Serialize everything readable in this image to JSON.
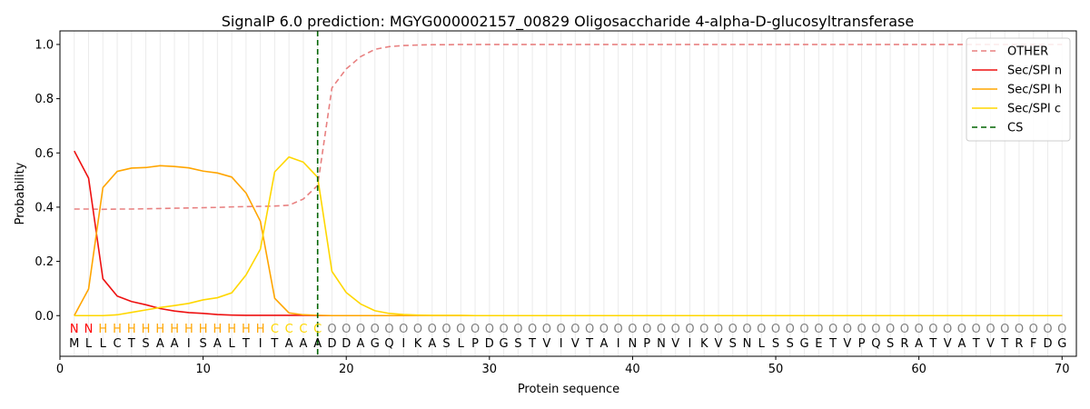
{
  "chart_data": {
    "type": "line",
    "title": "SignalP 6.0 prediction: MGYG000002157_00829 Oligosaccharide 4-alpha-D-glucosyltransferase",
    "xlabel": "Protein sequence",
    "ylabel": "Probability",
    "xlim": [
      0,
      71
    ],
    "ylim": [
      -0.15,
      1.05
    ],
    "xticks": [
      0,
      10,
      20,
      30,
      40,
      50,
      60,
      70
    ],
    "yticks": [
      0.0,
      0.2,
      0.4,
      0.6,
      0.8,
      1.0
    ],
    "xtick_labels": [
      "0",
      "10",
      "20",
      "30",
      "40",
      "50",
      "60",
      "70"
    ],
    "ytick_labels": [
      "0.0",
      "0.2",
      "0.4",
      "0.6",
      "0.8",
      "1.0"
    ],
    "grid": "vertical lines at each residue position",
    "legend_position": "top-right",
    "x": [
      1,
      2,
      3,
      4,
      5,
      6,
      7,
      8,
      9,
      10,
      11,
      12,
      13,
      14,
      15,
      16,
      17,
      18,
      19,
      20,
      21,
      22,
      23,
      24,
      25,
      26,
      27,
      28,
      29,
      30,
      31,
      32,
      33,
      34,
      35,
      36,
      37,
      38,
      39,
      40,
      41,
      42,
      43,
      44,
      45,
      46,
      47,
      48,
      49,
      50,
      51,
      52,
      53,
      54,
      55,
      56,
      57,
      58,
      59,
      60,
      61,
      62,
      63,
      64,
      65,
      66,
      67,
      68,
      69,
      70
    ],
    "series": [
      {
        "name": "OTHER",
        "color": "#e88080",
        "dash": "dashed",
        "values": [
          0.393,
          0.393,
          0.392,
          0.393,
          0.393,
          0.394,
          0.395,
          0.396,
          0.397,
          0.398,
          0.399,
          0.401,
          0.402,
          0.403,
          0.404,
          0.407,
          0.43,
          0.48,
          0.84,
          0.91,
          0.955,
          0.982,
          0.992,
          0.996,
          0.998,
          0.999,
          0.999,
          1,
          1,
          1,
          1,
          1,
          1,
          1,
          1,
          1,
          1,
          1,
          1,
          1,
          1,
          1,
          1,
          1,
          1,
          1,
          1,
          1,
          1,
          1,
          1,
          1,
          1,
          1,
          1,
          1,
          1,
          1,
          1,
          1,
          1,
          1,
          1,
          1,
          1,
          1,
          1,
          1,
          1,
          1
        ]
      },
      {
        "name": "Sec/SPI n",
        "color": "#ee1111",
        "dash": "solid",
        "values": [
          0.607,
          0.507,
          0.136,
          0.072,
          0.052,
          0.04,
          0.026,
          0.017,
          0.011,
          0.008,
          0.004,
          0.002,
          0.001,
          0.001,
          0.001,
          0.001,
          0.001,
          0,
          0,
          0,
          0,
          0,
          0,
          0,
          0,
          0,
          0,
          0,
          0,
          0,
          0,
          0,
          0,
          0,
          0,
          0,
          0,
          0,
          0,
          0,
          0,
          0,
          0,
          0,
          0,
          0,
          0,
          0,
          0,
          0,
          0,
          0,
          0,
          0,
          0,
          0,
          0,
          0,
          0,
          0,
          0,
          0,
          0,
          0,
          0,
          0,
          0,
          0,
          0,
          0
        ]
      },
      {
        "name": "Sec/SPI h",
        "color": "#ffa500",
        "dash": "solid",
        "values": [
          0.0,
          0.098,
          0.472,
          0.532,
          0.544,
          0.546,
          0.553,
          0.55,
          0.545,
          0.533,
          0.526,
          0.511,
          0.452,
          0.348,
          0.064,
          0.01,
          0.003,
          0.001,
          0,
          0,
          0,
          0,
          0,
          0,
          0,
          0,
          0,
          0,
          0,
          0,
          0,
          0,
          0,
          0,
          0,
          0,
          0,
          0,
          0,
          0,
          0,
          0,
          0,
          0,
          0,
          0,
          0,
          0,
          0,
          0,
          0,
          0,
          0,
          0,
          0,
          0,
          0,
          0,
          0,
          0,
          0,
          0,
          0,
          0,
          0,
          0,
          0,
          0,
          0,
          0
        ]
      },
      {
        "name": "Sec/SPI c",
        "color": "#ffd700",
        "dash": "solid",
        "values": [
          0.0,
          0.0,
          0.0,
          0.003,
          0.012,
          0.021,
          0.03,
          0.037,
          0.045,
          0.058,
          0.066,
          0.084,
          0.15,
          0.245,
          0.53,
          0.585,
          0.566,
          0.51,
          0.163,
          0.085,
          0.043,
          0.018,
          0.008,
          0.004,
          0.002,
          0.001,
          0.001,
          0.001,
          0,
          0,
          0,
          0,
          0,
          0,
          0,
          0,
          0,
          0,
          0,
          0,
          0,
          0,
          0,
          0,
          0,
          0,
          0,
          0,
          0,
          0,
          0,
          0,
          0,
          0,
          0,
          0,
          0,
          0,
          0,
          0,
          0,
          0,
          0,
          0,
          0,
          0,
          0,
          0,
          0,
          0
        ]
      }
    ],
    "cleavage_site": {
      "name": "CS",
      "x": 18,
      "color": "#006400",
      "dash": "dashed"
    },
    "residues": [
      "M",
      "L",
      "L",
      "C",
      "T",
      "S",
      "A",
      "A",
      "I",
      "S",
      "A",
      "L",
      "T",
      "I",
      "T",
      "A",
      "A",
      "A",
      "D",
      "D",
      "A",
      "G",
      "Q",
      "I",
      "K",
      "A",
      "S",
      "L",
      "P",
      "D",
      "G",
      "S",
      "T",
      "V",
      "I",
      "V",
      "T",
      "A",
      "I",
      "N",
      "P",
      "N",
      "V",
      "I",
      "K",
      "V",
      "S",
      "N",
      "L",
      "S",
      "S",
      "G",
      "E",
      "T",
      "V",
      "P",
      "Q",
      "S",
      "R",
      "A",
      "T",
      "V",
      "A",
      "T",
      "V",
      "T",
      "R",
      "F",
      "D",
      "G"
    ],
    "region_labels": [
      "N",
      "N",
      "H",
      "H",
      "H",
      "H",
      "H",
      "H",
      "H",
      "H",
      "H",
      "H",
      "H",
      "H",
      "C",
      "C",
      "C",
      "C",
      "O",
      "O",
      "O",
      "O",
      "O",
      "O",
      "O",
      "O",
      "O",
      "O",
      "O",
      "O",
      "O",
      "O",
      "O",
      "O",
      "O",
      "O",
      "O",
      "O",
      "O",
      "O",
      "O",
      "O",
      "O",
      "O",
      "O",
      "O",
      "O",
      "O",
      "O",
      "O",
      "O",
      "O",
      "O",
      "O",
      "O",
      "O",
      "O",
      "O",
      "O",
      "O",
      "O",
      "O",
      "O",
      "O",
      "O",
      "O",
      "O",
      "O",
      "O",
      "O"
    ],
    "region_colors": {
      "N": "#ff0000",
      "H": "#ffa500",
      "C": "#ffd700",
      "O": "#808080"
    }
  }
}
